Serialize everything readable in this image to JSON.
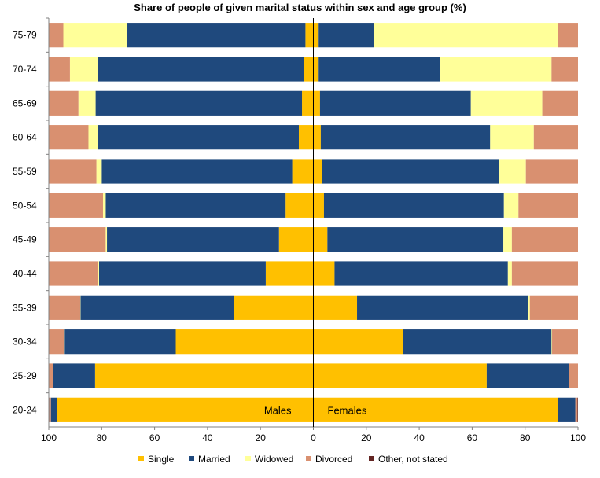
{
  "chart_data": {
    "type": "bar",
    "orientation": "horizontal",
    "title": "Share of people of given marital status  within sex and age group (%)",
    "categories": [
      "75-79",
      "70-74",
      "65-69",
      "60-64",
      "55-59",
      "50-54",
      "45-49",
      "40-44",
      "35-39",
      "30-34",
      "25-29",
      "20-24"
    ],
    "xlim": [
      -100,
      100
    ],
    "x_tick_labels": [
      "100",
      "80",
      "60",
      "40",
      "20",
      "0",
      "20",
      "40",
      "60",
      "80",
      "100"
    ],
    "side_labels": {
      "left": "Males",
      "right": "Females"
    },
    "grid": false,
    "legend_position": "bottom",
    "series": [
      {
        "name": "Single",
        "color": "#FFC000",
        "males": [
          3.0,
          3.5,
          4.3,
          5.5,
          8.0,
          10.5,
          13.0,
          18.0,
          30.0,
          52.0,
          82.5,
          97.0
        ],
        "females": [
          2.0,
          2.0,
          2.5,
          2.8,
          3.3,
          4.0,
          5.3,
          8.0,
          16.5,
          34.0,
          65.5,
          92.5
        ]
      },
      {
        "name": "Married",
        "color": "#1F497D",
        "males": [
          67.5,
          78.0,
          78.0,
          76.0,
          72.0,
          68.0,
          65.0,
          63.0,
          58.0,
          42.0,
          16.0,
          2.2
        ],
        "females": [
          21.0,
          46.0,
          57.0,
          64.0,
          67.0,
          68.0,
          66.5,
          65.5,
          64.5,
          56.0,
          31.0,
          6.5
        ]
      },
      {
        "name": "Widowed",
        "color": "#FFFF99",
        "males": [
          24.0,
          10.5,
          6.5,
          3.5,
          2.0,
          1.0,
          0.5,
          0.3,
          0.1,
          0.1,
          0.0,
          0.0
        ],
        "females": [
          69.5,
          42.0,
          27.0,
          16.5,
          10.0,
          5.5,
          3.2,
          1.5,
          0.8,
          0.2,
          0.0,
          0.0
        ]
      },
      {
        "name": "Divorced",
        "color": "#D99070",
        "males": [
          5.5,
          8.0,
          11.2,
          15.0,
          18.0,
          20.5,
          21.5,
          18.7,
          12.0,
          5.8,
          1.5,
          0.6
        ],
        "females": [
          7.5,
          10.0,
          13.5,
          16.7,
          19.7,
          22.5,
          25.0,
          25.0,
          18.2,
          9.8,
          3.5,
          0.8
        ]
      },
      {
        "name": "Other, not stated",
        "color": "#632523",
        "males": [
          0.0,
          0.0,
          0.0,
          0.0,
          0.0,
          0.0,
          0.0,
          0.0,
          0.0,
          0.1,
          0.0,
          0.2
        ],
        "females": [
          0.0,
          0.0,
          0.0,
          0.0,
          0.0,
          0.0,
          0.0,
          0.0,
          0.0,
          0.0,
          0.0,
          0.2
        ]
      }
    ]
  }
}
